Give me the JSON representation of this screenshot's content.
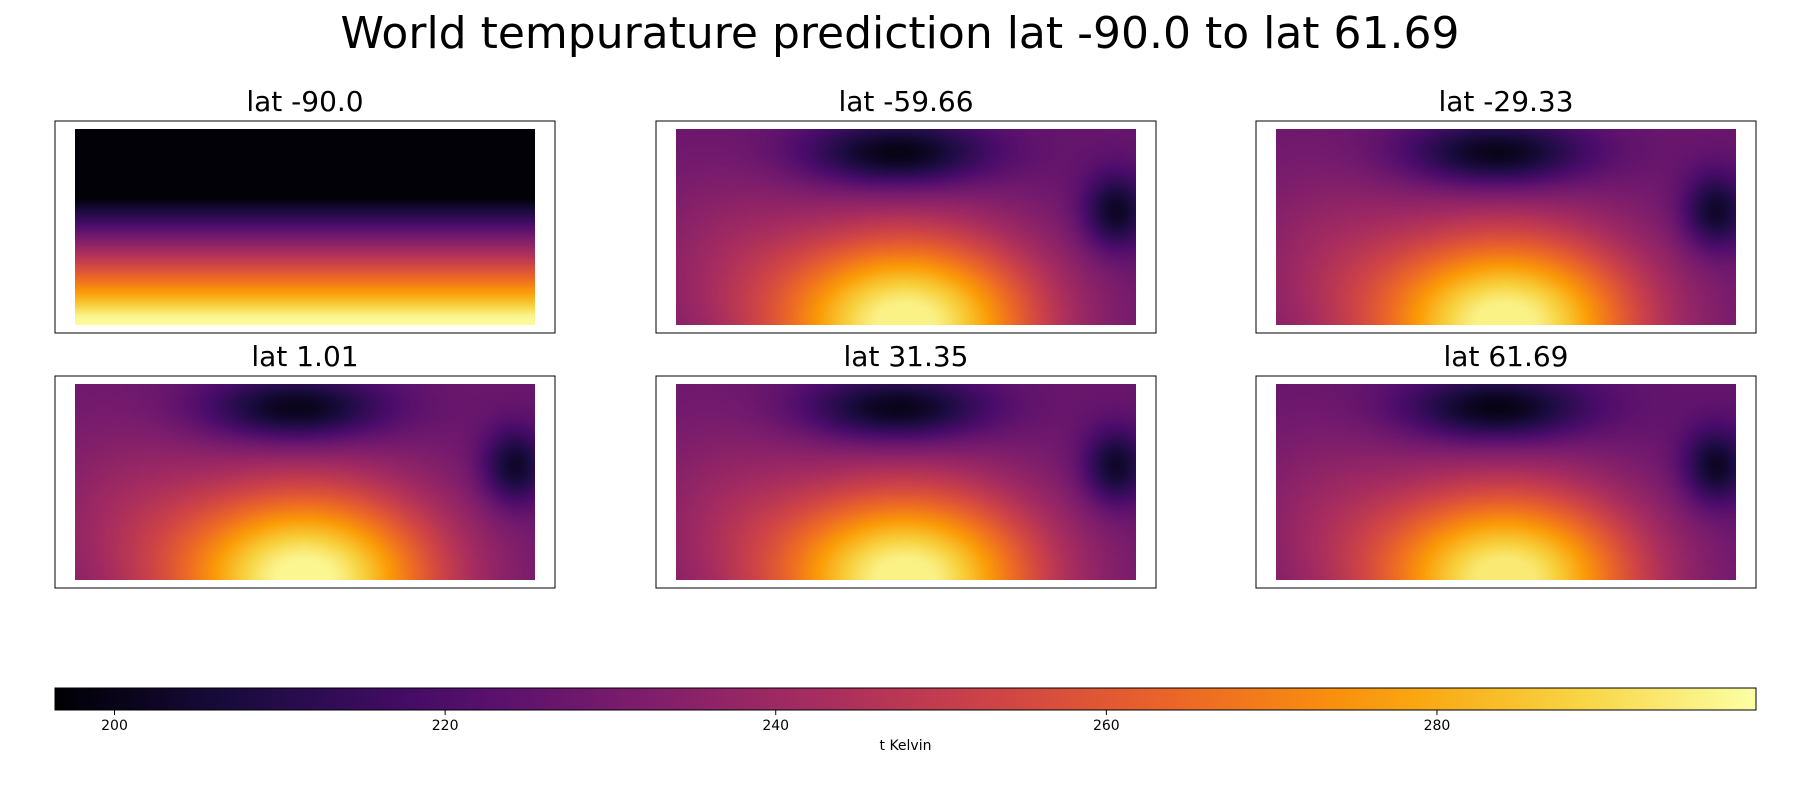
{
  "chart_data": {
    "type": "heatmap",
    "title": "World tempurature prediction lat -90.0 to lat 61.69",
    "colormap": "inferno",
    "panels": [
      {
        "title": "lat -90.0",
        "pattern": "gradient",
        "hot": 298,
        "cold": 197
      },
      {
        "title": "lat -59.66",
        "pattern": "blob",
        "hot": 296,
        "cold": 199
      },
      {
        "title": "lat -29.33",
        "pattern": "blob",
        "hot": 296,
        "cold": 200
      },
      {
        "title": "lat 1.01",
        "pattern": "blob",
        "hot": 297,
        "cold": 200
      },
      {
        "title": "lat 31.35",
        "pattern": "blob",
        "hot": 296,
        "cold": 200
      },
      {
        "title": "lat 61.69",
        "pattern": "blob",
        "hot": 294,
        "cold": 199
      }
    ],
    "colorbar": {
      "label": "t Kelvin",
      "vmin": 196.4,
      "vmax": 299.3,
      "ticks": [
        "200",
        "220",
        "240",
        "260",
        "280"
      ],
      "orientation": "horizontal",
      "placement": "bottom"
    }
  }
}
